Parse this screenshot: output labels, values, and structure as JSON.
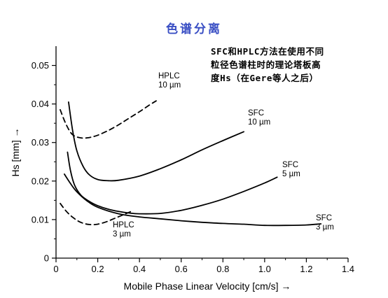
{
  "title": "色谱分离",
  "annotation": {
    "lines": [
      "SFC和HPLC方法在使用不同",
      "粒径色谱柱时的理论塔板高",
      "度Hs（在Gere等人之后）"
    ]
  },
  "chart_data": {
    "type": "line",
    "xlabel": "Mobile Phase Linear Velocity [cm/s] →",
    "ylabel": "Hs [mm] →",
    "xlim": [
      0,
      1.4
    ],
    "ylim": [
      0,
      0.055
    ],
    "xticks": [
      "0",
      "0.2",
      "0.4",
      "0.6",
      "0.8",
      "1.0",
      "1.2",
      "1.4"
    ],
    "xtick_values": [
      0,
      0.2,
      0.4,
      0.6,
      0.8,
      1.0,
      1.2,
      1.4
    ],
    "yticks": [
      "0",
      "0.01",
      "0.02",
      "0.03",
      "0.04",
      "0.05"
    ],
    "ytick_values": [
      0,
      0.01,
      0.02,
      0.03,
      0.04,
      0.05
    ],
    "grid": false,
    "series": [
      {
        "name": "HPLC 10 µm",
        "style": "dashed",
        "label_lines": [
          "HPLC",
          "10 µm"
        ],
        "x": [
          0.02,
          0.05,
          0.08,
          0.12,
          0.16,
          0.2,
          0.25,
          0.3,
          0.35,
          0.4,
          0.45,
          0.48
        ],
        "y": [
          0.0385,
          0.0345,
          0.032,
          0.0312,
          0.0313,
          0.0319,
          0.0331,
          0.0346,
          0.0363,
          0.038,
          0.0398,
          0.0408
        ]
      },
      {
        "name": "HPLC 3 µm",
        "style": "dashed",
        "label_lines": [
          "HPLC",
          "3 µm"
        ],
        "x": [
          0.02,
          0.05,
          0.08,
          0.11,
          0.14,
          0.17,
          0.2,
          0.24,
          0.28,
          0.32,
          0.36
        ],
        "y": [
          0.0142,
          0.0121,
          0.0106,
          0.0095,
          0.0089,
          0.0087,
          0.0088,
          0.0094,
          0.0103,
          0.0112,
          0.0121
        ]
      },
      {
        "name": "SFC 10 µm",
        "style": "solid",
        "label_lines": [
          "SFC",
          "10 µm"
        ],
        "x": [
          0.06,
          0.08,
          0.1,
          0.13,
          0.16,
          0.2,
          0.25,
          0.3,
          0.4,
          0.5,
          0.6,
          0.7,
          0.8,
          0.9
        ],
        "y": [
          0.0405,
          0.033,
          0.0278,
          0.0238,
          0.0216,
          0.0204,
          0.0201,
          0.0202,
          0.0213,
          0.0232,
          0.0255,
          0.0281,
          0.0305,
          0.0328
        ]
      },
      {
        "name": "SFC 5 µm",
        "style": "solid",
        "label_lines": [
          "SFC",
          "5 µm"
        ],
        "x": [
          0.055,
          0.07,
          0.09,
          0.12,
          0.16,
          0.2,
          0.25,
          0.3,
          0.35,
          0.4,
          0.5,
          0.6,
          0.7,
          0.8,
          0.9,
          1.0,
          1.06
        ],
        "y": [
          0.0275,
          0.0225,
          0.0188,
          0.0163,
          0.0147,
          0.0136,
          0.0127,
          0.0121,
          0.0117,
          0.0115,
          0.0116,
          0.0124,
          0.0137,
          0.0153,
          0.0173,
          0.0195,
          0.021
        ]
      },
      {
        "name": "SFC 3 µm",
        "style": "solid",
        "label_lines": [
          "SFC",
          "3 µm"
        ],
        "x": [
          0.04,
          0.07,
          0.1,
          0.15,
          0.2,
          0.3,
          0.4,
          0.5,
          0.6,
          0.7,
          0.8,
          0.9,
          1.0,
          1.1,
          1.2,
          1.27
        ],
        "y": [
          0.0218,
          0.0193,
          0.0172,
          0.0148,
          0.0132,
          0.0115,
          0.0107,
          0.0102,
          0.0097,
          0.0093,
          0.009,
          0.0088,
          0.0085,
          0.0085,
          0.0086,
          0.0089
        ]
      }
    ]
  }
}
